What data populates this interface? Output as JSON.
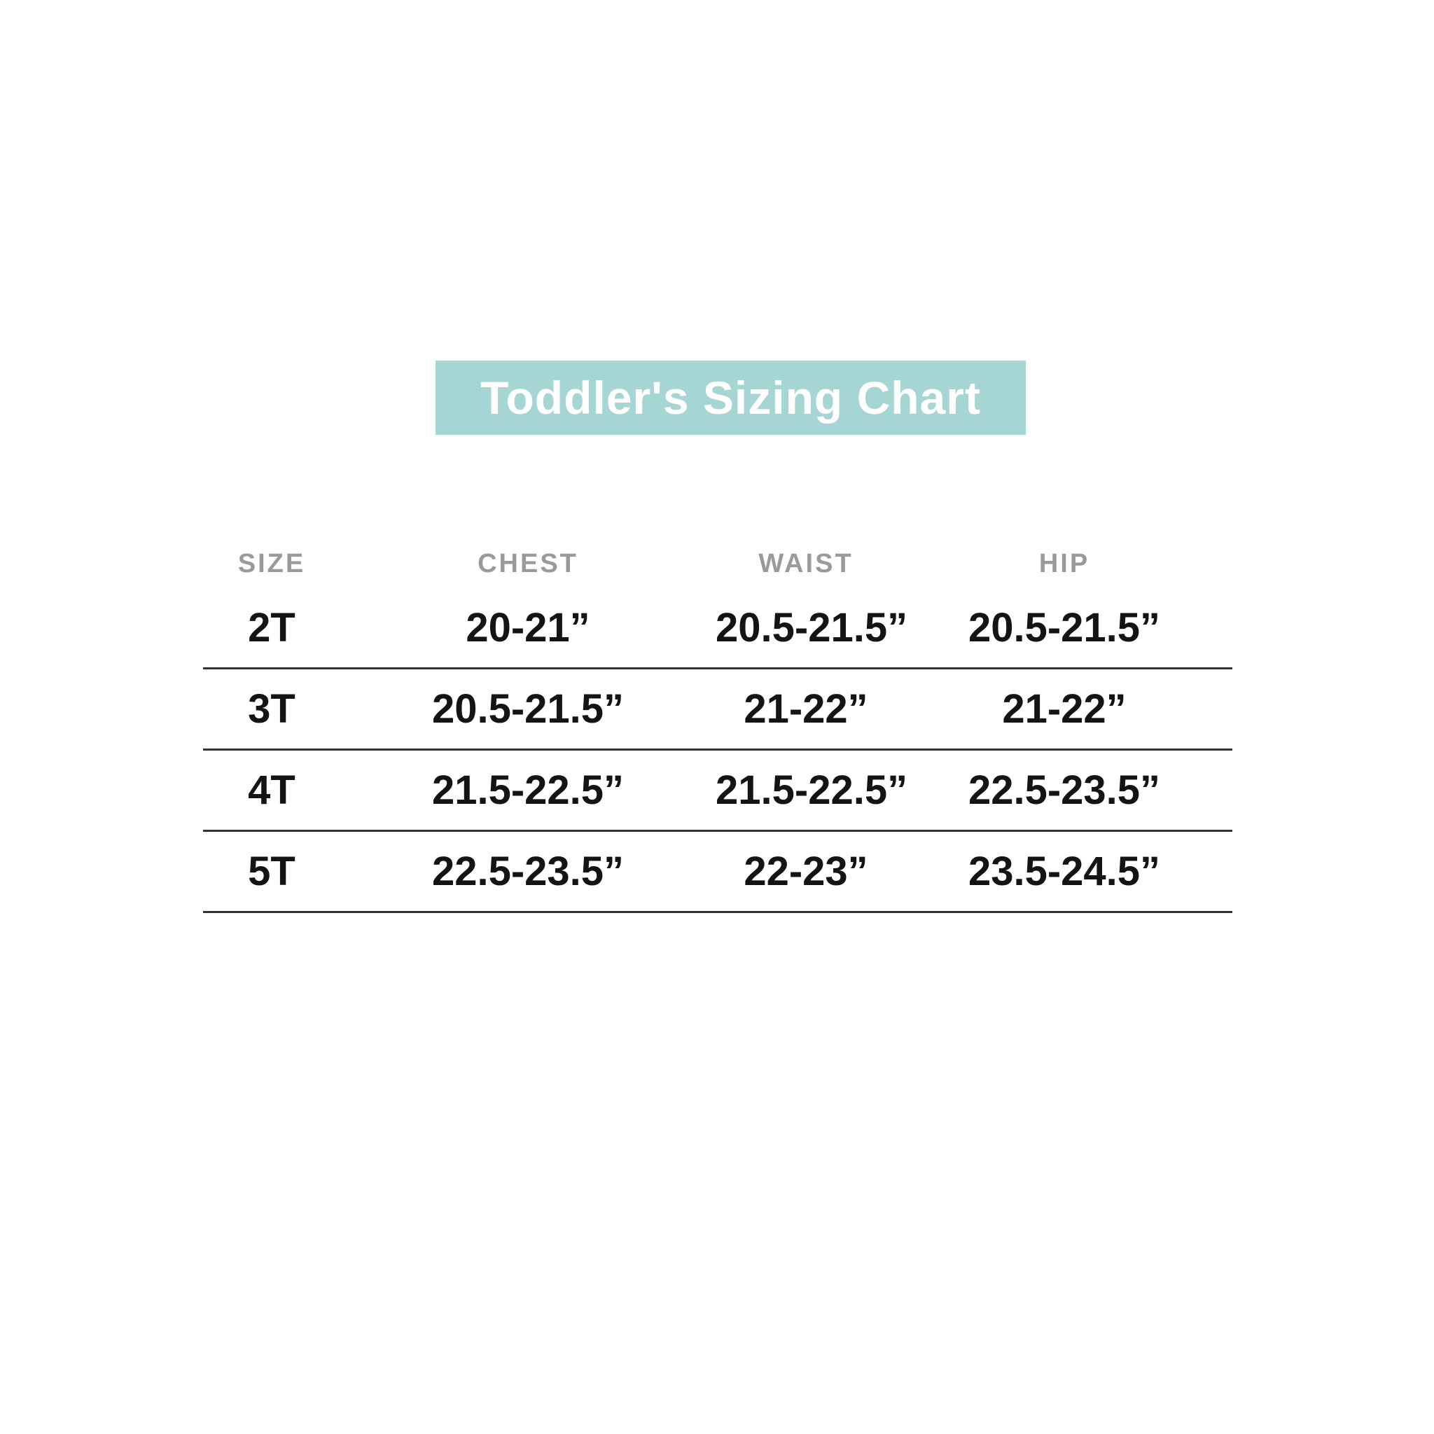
{
  "title": {
    "text": "Toddler's Sizing Chart"
  },
  "colors": {
    "page_bg": "#ffffff",
    "banner_bg": "#a5d6d3",
    "banner_text": "#ffffff",
    "header_text": "#9a9a9a",
    "body_text": "#141414",
    "line": "#333333"
  },
  "chart_data": {
    "type": "table",
    "title": "Toddler's Sizing Chart",
    "columns": [
      "SIZE",
      "CHEST",
      "WAIST",
      "HIP"
    ],
    "rows": [
      [
        "2T",
        "20-21”",
        "20.5-21.5”",
        "20.5-21.5”"
      ],
      [
        "3T",
        "20.5-21.5”",
        "21-22”",
        "21-22”"
      ],
      [
        "4T",
        "21.5-22.5”",
        "21.5-22.5”",
        "22.5-23.5”"
      ],
      [
        "5T",
        "22.5-23.5”",
        "22-23”",
        "23.5-24.5”"
      ]
    ],
    "layout_hints": {
      "header_style": "uppercase gray",
      "row_separators": "horizontal lines under each data row",
      "grid": "horizontal only, no vertical lines"
    }
  }
}
